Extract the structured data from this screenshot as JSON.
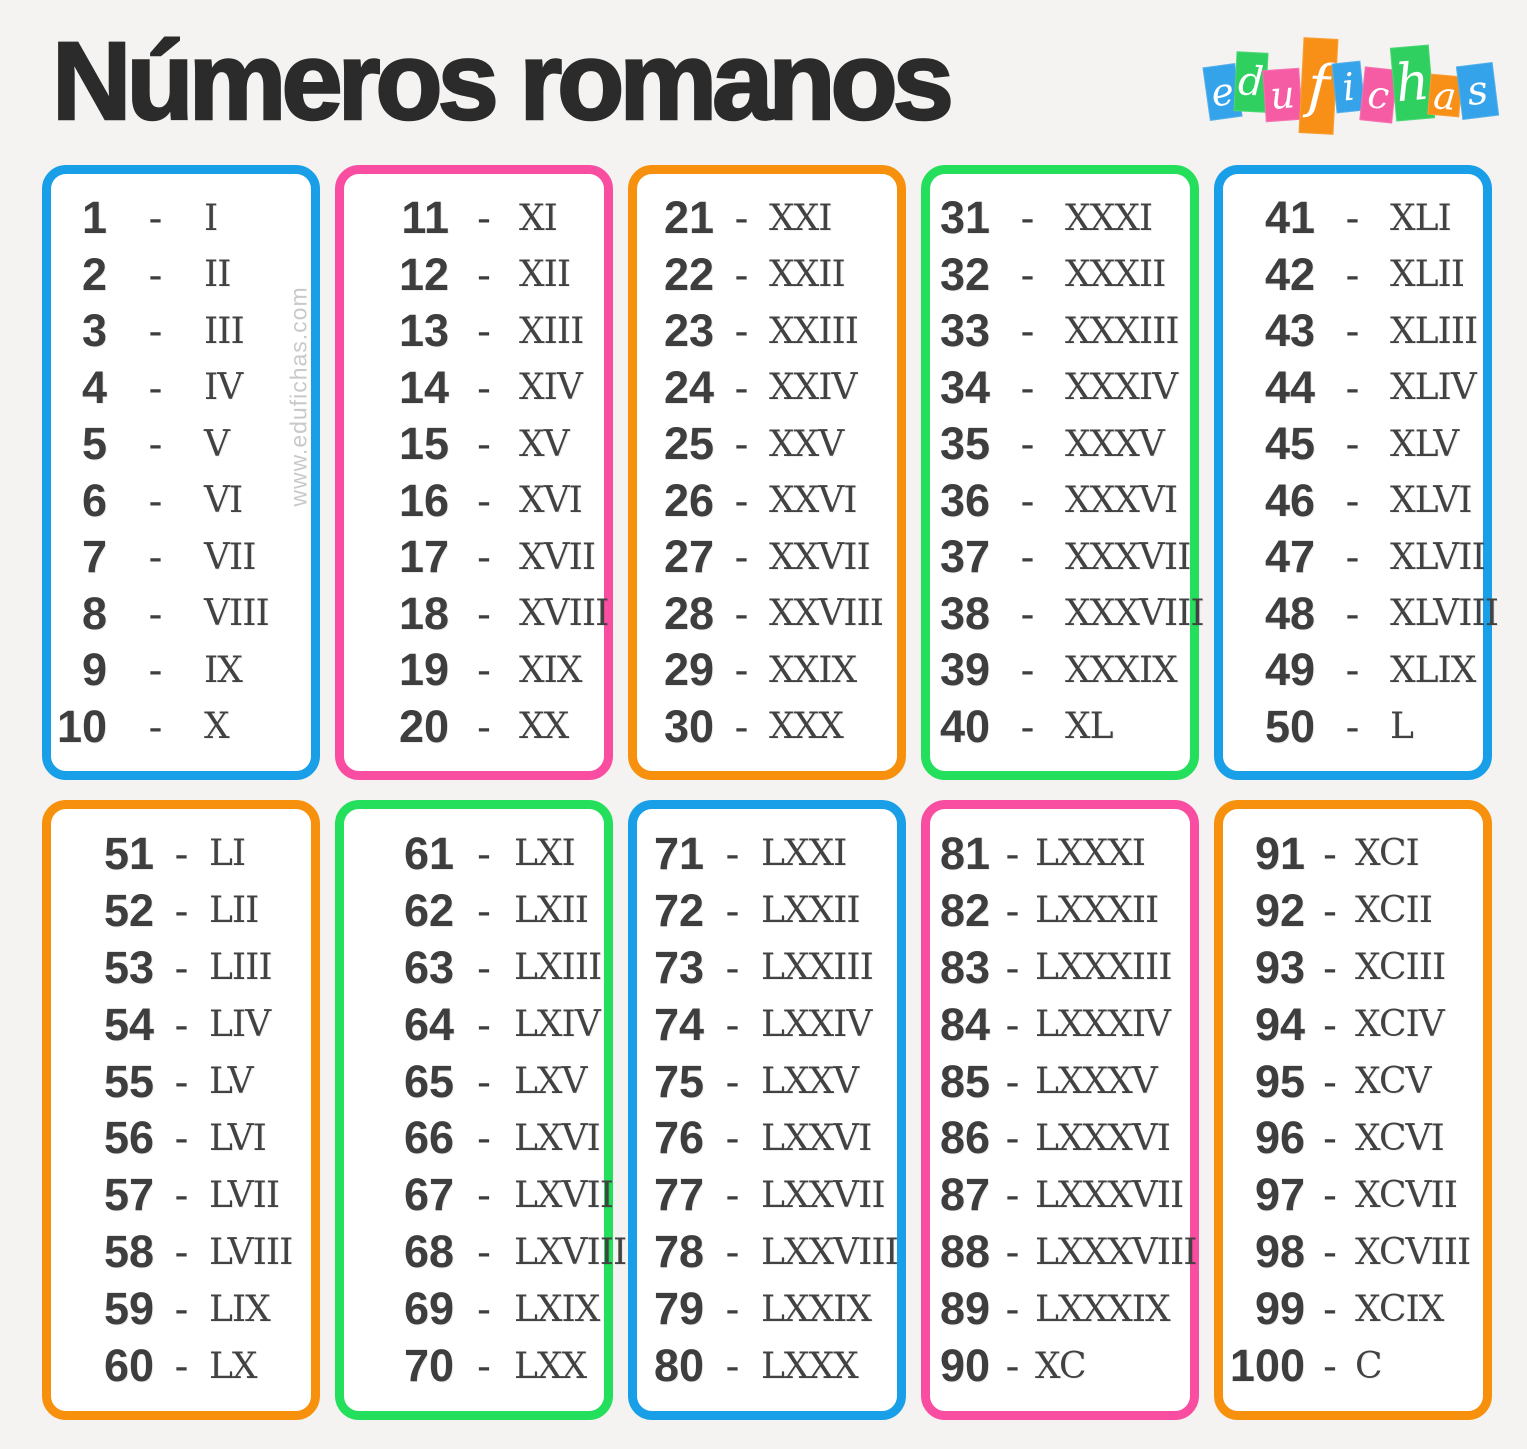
{
  "title": "Números romanos",
  "watermark": "www.edufichas.com",
  "separator": "-",
  "logo": {
    "letters": [
      {
        "char": "e",
        "tile": "blue"
      },
      {
        "char": "d",
        "tile": "green"
      },
      {
        "char": "u",
        "tile": "pink"
      },
      {
        "char": "f",
        "tile": "orange"
      },
      {
        "char": "i",
        "tile": "blue"
      },
      {
        "char": "c",
        "tile": "pink"
      },
      {
        "char": "h",
        "tile": "green"
      },
      {
        "char": "a",
        "tile": "orange"
      },
      {
        "char": "s",
        "tile": "blue"
      }
    ]
  },
  "colors": {
    "background": "#f4f3f1",
    "blue": "#189fe8",
    "pink": "#f94da1",
    "orange": "#f7910d",
    "green": "#24df5b",
    "tile_blue": "#35a3e9",
    "tile_green": "#2fd05f",
    "tile_pink": "#f55ca4",
    "tile_orange": "#f89018",
    "number_text": "#3e3e3e",
    "roman_text": "#424242",
    "title_text": "#2b2b2b",
    "watermark_text": "#c9c9c9",
    "box_background": "#ffffff"
  },
  "boxes": [
    {
      "border": "blue",
      "rows": [
        {
          "num": "1",
          "roman": "I"
        },
        {
          "num": "2",
          "roman": "II"
        },
        {
          "num": "3",
          "roman": "III"
        },
        {
          "num": "4",
          "roman": "IV"
        },
        {
          "num": "5",
          "roman": "V"
        },
        {
          "num": "6",
          "roman": "VI"
        },
        {
          "num": "7",
          "roman": "VII"
        },
        {
          "num": "8",
          "roman": "VIII"
        },
        {
          "num": "9",
          "roman": "IX"
        },
        {
          "num": "10",
          "roman": "X"
        }
      ]
    },
    {
      "border": "pink",
      "rows": [
        {
          "num": "11",
          "roman": "XI"
        },
        {
          "num": "12",
          "roman": "XII"
        },
        {
          "num": "13",
          "roman": "XIII"
        },
        {
          "num": "14",
          "roman": "XIV"
        },
        {
          "num": "15",
          "roman": "XV"
        },
        {
          "num": "16",
          "roman": "XVI"
        },
        {
          "num": "17",
          "roman": "XVII"
        },
        {
          "num": "18",
          "roman": "XVIII"
        },
        {
          "num": "19",
          "roman": "XIX"
        },
        {
          "num": "20",
          "roman": "XX"
        }
      ]
    },
    {
      "border": "orange",
      "rows": [
        {
          "num": "21",
          "roman": "XXI"
        },
        {
          "num": "22",
          "roman": "XXII"
        },
        {
          "num": "23",
          "roman": "XXIII"
        },
        {
          "num": "24",
          "roman": "XXIV"
        },
        {
          "num": "25",
          "roman": "XXV"
        },
        {
          "num": "26",
          "roman": "XXVI"
        },
        {
          "num": "27",
          "roman": "XXVII"
        },
        {
          "num": "28",
          "roman": "XXVIII"
        },
        {
          "num": "29",
          "roman": "XXIX"
        },
        {
          "num": "30",
          "roman": "XXX"
        }
      ]
    },
    {
      "border": "green",
      "rows": [
        {
          "num": "31",
          "roman": "XXXI"
        },
        {
          "num": "32",
          "roman": "XXXII"
        },
        {
          "num": "33",
          "roman": "XXXIII"
        },
        {
          "num": "34",
          "roman": "XXXIV"
        },
        {
          "num": "35",
          "roman": "XXXV"
        },
        {
          "num": "36",
          "roman": "XXXVI"
        },
        {
          "num": "37",
          "roman": "XXXVII"
        },
        {
          "num": "38",
          "roman": "XXXVIII"
        },
        {
          "num": "39",
          "roman": "XXXIX"
        },
        {
          "num": "40",
          "roman": "XL"
        }
      ]
    },
    {
      "border": "blue",
      "rows": [
        {
          "num": "41",
          "roman": "XLI"
        },
        {
          "num": "42",
          "roman": "XLII"
        },
        {
          "num": "43",
          "roman": "XLIII"
        },
        {
          "num": "44",
          "roman": "XLIV"
        },
        {
          "num": "45",
          "roman": "XLV"
        },
        {
          "num": "46",
          "roman": "XLVI"
        },
        {
          "num": "47",
          "roman": "XLVII"
        },
        {
          "num": "48",
          "roman": "XLVIII"
        },
        {
          "num": "49",
          "roman": "XLIX"
        },
        {
          "num": "50",
          "roman": "L"
        }
      ]
    },
    {
      "border": "orange",
      "rows": [
        {
          "num": "51",
          "roman": "LI"
        },
        {
          "num": "52",
          "roman": "LII"
        },
        {
          "num": "53",
          "roman": "LIII"
        },
        {
          "num": "54",
          "roman": "LIV"
        },
        {
          "num": "55",
          "roman": "LV"
        },
        {
          "num": "56",
          "roman": "LVI"
        },
        {
          "num": "57",
          "roman": "LVII"
        },
        {
          "num": "58",
          "roman": "LVIII"
        },
        {
          "num": "59",
          "roman": "LIX"
        },
        {
          "num": "60",
          "roman": "LX"
        }
      ]
    },
    {
      "border": "green",
      "rows": [
        {
          "num": "61",
          "roman": "LXI"
        },
        {
          "num": "62",
          "roman": "LXII"
        },
        {
          "num": "63",
          "roman": "LXIII"
        },
        {
          "num": "64",
          "roman": "LXIV"
        },
        {
          "num": "65",
          "roman": "LXV"
        },
        {
          "num": "66",
          "roman": "LXVI"
        },
        {
          "num": "67",
          "roman": "LXVII"
        },
        {
          "num": "68",
          "roman": "LXVIII"
        },
        {
          "num": "69",
          "roman": "LXIX"
        },
        {
          "num": "70",
          "roman": "LXX"
        }
      ]
    },
    {
      "border": "blue",
      "rows": [
        {
          "num": "71",
          "roman": "LXXI"
        },
        {
          "num": "72",
          "roman": "LXXII"
        },
        {
          "num": "73",
          "roman": "LXXIII"
        },
        {
          "num": "74",
          "roman": "LXXIV"
        },
        {
          "num": "75",
          "roman": "LXXV"
        },
        {
          "num": "76",
          "roman": "LXXVI"
        },
        {
          "num": "77",
          "roman": "LXXVII"
        },
        {
          "num": "78",
          "roman": "LXXVIII"
        },
        {
          "num": "79",
          "roman": "LXXIX"
        },
        {
          "num": "80",
          "roman": "LXXX"
        }
      ]
    },
    {
      "border": "pink",
      "rows": [
        {
          "num": "81",
          "roman": "LXXXI"
        },
        {
          "num": "82",
          "roman": "LXXXII"
        },
        {
          "num": "83",
          "roman": "LXXXIII"
        },
        {
          "num": "84",
          "roman": "LXXXIV"
        },
        {
          "num": "85",
          "roman": "LXXXV"
        },
        {
          "num": "86",
          "roman": "LXXXVI"
        },
        {
          "num": "87",
          "roman": "LXXXVII"
        },
        {
          "num": "88",
          "roman": "LXXXVIII"
        },
        {
          "num": "89",
          "roman": "LXXXIX"
        },
        {
          "num": "90",
          "roman": "XC"
        }
      ]
    },
    {
      "border": "orange",
      "rows": [
        {
          "num": "91",
          "roman": "XCI"
        },
        {
          "num": "92",
          "roman": "XCII"
        },
        {
          "num": "93",
          "roman": "XCIII"
        },
        {
          "num": "94",
          "roman": "XCIV"
        },
        {
          "num": "95",
          "roman": "XCV"
        },
        {
          "num": "96",
          "roman": "XCVI"
        },
        {
          "num": "97",
          "roman": "XCVII"
        },
        {
          "num": "98",
          "roman": "XCVIII"
        },
        {
          "num": "99",
          "roman": "XCIX"
        },
        {
          "num": "100",
          "roman": "C"
        }
      ]
    }
  ]
}
